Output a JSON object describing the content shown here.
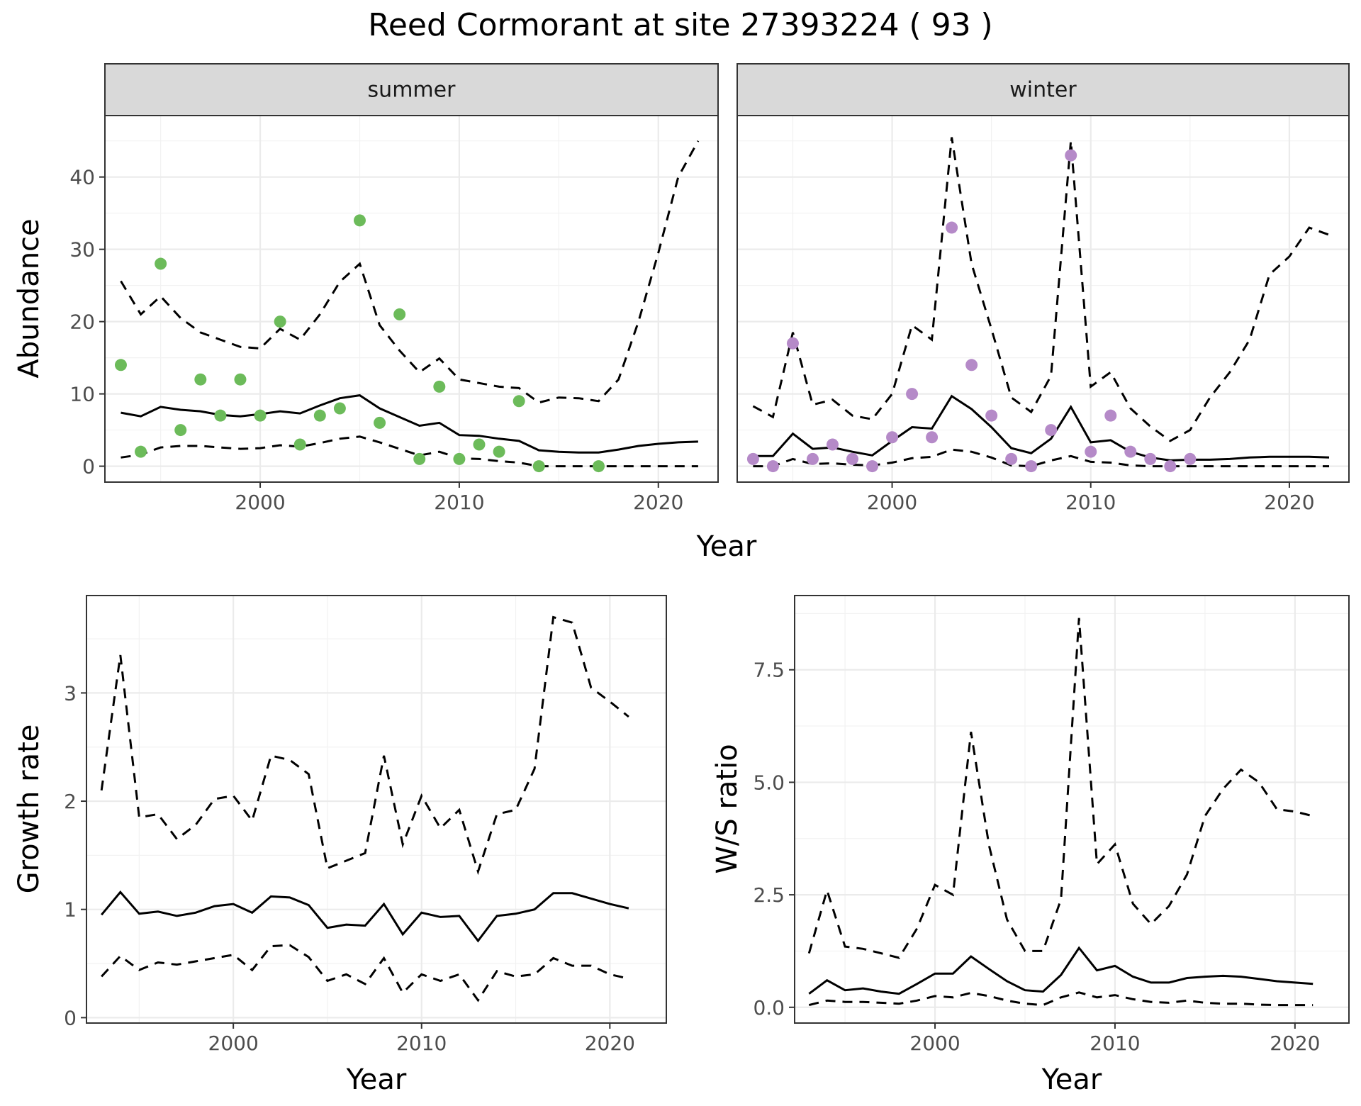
{
  "title": "Reed Cormorant at site 27393224 ( 93 )",
  "colors": {
    "summer_points": "#6cbb5a",
    "winter_points": "#b58ac8",
    "lines": "#000000",
    "strip": "#d9d9d9"
  },
  "chart_data": [
    {
      "type": "line",
      "facet": "summer",
      "xlabel": "Year",
      "ylabel": "Abundance",
      "xlim": [
        1992.2,
        2023.0
      ],
      "ylim": [
        -2.2,
        48.5
      ],
      "x_ticks": [
        2000,
        2010,
        2020
      ],
      "y_ticks": [
        0,
        10,
        20,
        30,
        40
      ],
      "grid": true,
      "series": [
        {
          "style": "solid",
          "x": [
            1993,
            1994,
            1995,
            1996,
            1997,
            1998,
            1999,
            2000,
            2001,
            2002,
            2003,
            2004,
            2005,
            2006,
            2007,
            2008,
            2009,
            2010,
            2011,
            2012,
            2013,
            2014,
            2015,
            2016,
            2017,
            2018,
            2019,
            2020,
            2021,
            2022
          ],
          "values": [
            7.4,
            6.9,
            8.2,
            7.8,
            7.6,
            7.1,
            6.9,
            7.2,
            7.6,
            7.3,
            8.4,
            9.4,
            9.8,
            8.0,
            6.8,
            5.6,
            6.0,
            4.3,
            4.2,
            3.8,
            3.5,
            2.2,
            2.0,
            1.9,
            1.9,
            2.3,
            2.8,
            3.1,
            3.3,
            3.4
          ]
        },
        {
          "style": "dashed",
          "x": [
            1993,
            1994,
            1995,
            1996,
            1997,
            1998,
            1999,
            2000,
            2001,
            2002,
            2003,
            2004,
            2005,
            2006,
            2007,
            2008,
            2009,
            2010,
            2011,
            2012,
            2013,
            2014,
            2015,
            2016,
            2017,
            2018,
            2019,
            2020,
            2021,
            2022
          ],
          "values": [
            25.6,
            21.0,
            23.5,
            20.5,
            18.5,
            17.5,
            16.5,
            16.3,
            19.0,
            17.5,
            21.0,
            25.5,
            28.0,
            19.5,
            16.0,
            13.0,
            14.9,
            12.0,
            11.5,
            11.0,
            10.8,
            8.8,
            9.5,
            9.4,
            9.0,
            12.0,
            20.0,
            29.5,
            40.0,
            45.0
          ]
        },
        {
          "style": "dashed",
          "x": [
            1993,
            1994,
            1995,
            1996,
            1997,
            1998,
            1999,
            2000,
            2001,
            2002,
            2003,
            2004,
            2005,
            2006,
            2007,
            2008,
            2009,
            2010,
            2011,
            2012,
            2013,
            2014,
            2015,
            2016,
            2017,
            2018,
            2019,
            2020,
            2021,
            2022
          ],
          "values": [
            1.2,
            1.6,
            2.6,
            2.8,
            2.8,
            2.6,
            2.4,
            2.5,
            2.9,
            2.7,
            3.2,
            3.8,
            4.1,
            3.3,
            2.4,
            1.5,
            2.0,
            1.1,
            1.0,
            0.7,
            0.5,
            0.0,
            0.0,
            0.0,
            0.0,
            0.0,
            0.0,
            0.0,
            0.0,
            0.0
          ]
        }
      ],
      "points": {
        "x": [
          1993,
          1994,
          1995,
          1996,
          1997,
          1998,
          1999,
          2000,
          2001,
          2002,
          2003,
          2004,
          2005,
          2006,
          2007,
          2008,
          2009,
          2010,
          2011,
          2012,
          2013,
          2014,
          2017
        ],
        "values": [
          14,
          2,
          28,
          5,
          12,
          7,
          12,
          7,
          20,
          3,
          7,
          8,
          34,
          6,
          21,
          1,
          11,
          1,
          3,
          2,
          9,
          0,
          0
        ]
      }
    },
    {
      "type": "line",
      "facet": "winter",
      "xlabel": "Year",
      "ylabel": "Abundance",
      "xlim": [
        1992.2,
        2023.0
      ],
      "ylim": [
        -2.2,
        48.5
      ],
      "x_ticks": [
        2000,
        2010,
        2020
      ],
      "y_ticks": [
        0,
        10,
        20,
        30,
        40
      ],
      "grid": true,
      "series": [
        {
          "style": "solid",
          "x": [
            1993,
            1994,
            1995,
            1996,
            1997,
            1998,
            1999,
            2000,
            2001,
            2002,
            2003,
            2004,
            2005,
            2006,
            2007,
            2008,
            2009,
            2010,
            2011,
            2012,
            2013,
            2014,
            2015,
            2016,
            2017,
            2018,
            2019,
            2020,
            2021,
            2022
          ],
          "values": [
            1.4,
            1.4,
            4.5,
            2.4,
            2.6,
            2.0,
            1.5,
            3.5,
            5.4,
            5.2,
            9.7,
            7.9,
            5.4,
            2.5,
            1.8,
            3.8,
            8.2,
            3.3,
            3.6,
            2.0,
            1.2,
            0.8,
            0.9,
            0.9,
            1.0,
            1.2,
            1.3,
            1.3,
            1.3,
            1.2
          ]
        },
        {
          "style": "dashed",
          "x": [
            1993,
            1994,
            1995,
            1996,
            1997,
            1998,
            1999,
            2000,
            2001,
            2002,
            2003,
            2004,
            2005,
            2006,
            2007,
            2008,
            2009,
            2010,
            2011,
            2012,
            2013,
            2014,
            2015,
            2016,
            2017,
            2018,
            2019,
            2020,
            2021,
            2022
          ],
          "values": [
            8.3,
            6.8,
            18.5,
            8.5,
            9.2,
            7.0,
            6.5,
            10.0,
            19.5,
            17.5,
            45.5,
            28.0,
            19.0,
            9.5,
            7.5,
            12.5,
            45.0,
            11.0,
            13.0,
            8.0,
            5.5,
            3.5,
            5.0,
            9.5,
            13.0,
            17.5,
            26.5,
            29.0,
            33.0,
            32.0
          ]
        },
        {
          "style": "dashed",
          "x": [
            1993,
            1994,
            1995,
            1996,
            1997,
            1998,
            1999,
            2000,
            2001,
            2002,
            2003,
            2004,
            2005,
            2006,
            2007,
            2008,
            2009,
            2010,
            2011,
            2012,
            2013,
            2014,
            2015,
            2016,
            2017,
            2018,
            2019,
            2020,
            2021,
            2022
          ],
          "values": [
            0.0,
            0.0,
            1.0,
            0.3,
            0.4,
            0.2,
            0.1,
            0.5,
            1.1,
            1.3,
            2.3,
            2.0,
            1.2,
            0.1,
            0.0,
            0.8,
            1.4,
            0.6,
            0.5,
            0.1,
            0.0,
            0.0,
            0.0,
            0.0,
            0.0,
            0.0,
            0.0,
            0.0,
            0.0,
            0.0
          ]
        }
      ],
      "points": {
        "x": [
          1993,
          1994,
          1995,
          1996,
          1997,
          1998,
          1999,
          2000,
          2001,
          2002,
          2003,
          2004,
          2005,
          2006,
          2007,
          2008,
          2009,
          2010,
          2011,
          2012,
          2013,
          2014,
          2015
        ],
        "values": [
          1,
          0,
          17,
          1,
          3,
          1,
          0,
          4,
          10,
          4,
          33,
          14,
          7,
          1,
          0,
          5,
          43,
          2,
          7,
          2,
          1,
          0,
          1
        ]
      }
    },
    {
      "type": "line",
      "xlabel": "Year",
      "ylabel": "Growth rate",
      "xlim": [
        1992.2,
        2023.0
      ],
      "ylim": [
        -0.05,
        3.9
      ],
      "x_ticks": [
        2000,
        2010,
        2020
      ],
      "y_ticks": [
        0,
        1,
        2,
        3
      ],
      "grid": true,
      "series": [
        {
          "style": "solid",
          "x": [
            1993,
            1994,
            1995,
            1996,
            1997,
            1998,
            1999,
            2000,
            2001,
            2002,
            2003,
            2004,
            2005,
            2006,
            2007,
            2008,
            2009,
            2010,
            2011,
            2012,
            2013,
            2014,
            2015,
            2016,
            2017,
            2018,
            2019,
            2020,
            2021
          ],
          "values": [
            0.95,
            1.16,
            0.96,
            0.98,
            0.94,
            0.97,
            1.03,
            1.05,
            0.97,
            1.12,
            1.11,
            1.04,
            0.83,
            0.86,
            0.85,
            1.05,
            0.77,
            0.97,
            0.93,
            0.94,
            0.71,
            0.94,
            0.96,
            1.0,
            1.15,
            1.15,
            1.1,
            1.05,
            1.01
          ]
        },
        {
          "style": "dashed",
          "x": [
            1993,
            1994,
            1995,
            1996,
            1997,
            1998,
            1999,
            2000,
            2001,
            2002,
            2003,
            2004,
            2005,
            2006,
            2007,
            2008,
            2009,
            2010,
            2011,
            2012,
            2013,
            2014,
            2015,
            2016,
            2017,
            2018,
            2019,
            2020,
            2021
          ],
          "values": [
            2.1,
            3.35,
            1.85,
            1.88,
            1.65,
            1.78,
            2.02,
            2.05,
            1.82,
            2.42,
            2.38,
            2.25,
            1.38,
            1.45,
            1.52,
            2.42,
            1.6,
            2.05,
            1.75,
            1.92,
            1.35,
            1.88,
            1.92,
            2.3,
            3.7,
            3.65,
            3.05,
            2.92,
            2.78
          ]
        },
        {
          "style": "dashed",
          "x": [
            1993,
            1994,
            1995,
            1996,
            1997,
            1998,
            1999,
            2000,
            2001,
            2002,
            2003,
            2004,
            2005,
            2006,
            2007,
            2008,
            2009,
            2010,
            2011,
            2012,
            2013,
            2014,
            2015,
            2016,
            2017,
            2018,
            2019,
            2020,
            2021
          ],
          "values": [
            0.38,
            0.57,
            0.44,
            0.51,
            0.49,
            0.52,
            0.55,
            0.58,
            0.44,
            0.66,
            0.67,
            0.56,
            0.34,
            0.4,
            0.31,
            0.55,
            0.23,
            0.4,
            0.34,
            0.4,
            0.16,
            0.43,
            0.38,
            0.4,
            0.55,
            0.48,
            0.48,
            0.4,
            0.36
          ]
        }
      ]
    },
    {
      "type": "line",
      "xlabel": "Year",
      "ylabel": "W/S ratio",
      "xlim": [
        1992.2,
        2023.0
      ],
      "ylim": [
        -0.35,
        9.15
      ],
      "x_ticks": [
        2000,
        2010,
        2020
      ],
      "y_ticks": [
        0.0,
        2.5,
        5.0,
        7.5
      ],
      "y_tick_labels": [
        "0.0",
        "2.5",
        "5.0",
        "7.5"
      ],
      "grid": true,
      "series": [
        {
          "style": "solid",
          "x": [
            1993,
            1994,
            1995,
            1996,
            1997,
            1998,
            1999,
            2000,
            2001,
            2002,
            2003,
            2004,
            2005,
            2006,
            2007,
            2008,
            2009,
            2010,
            2011,
            2012,
            2013,
            2014,
            2015,
            2016,
            2017,
            2018,
            2019,
            2020,
            2021
          ],
          "values": [
            0.3,
            0.6,
            0.38,
            0.42,
            0.35,
            0.3,
            0.52,
            0.75,
            0.75,
            1.13,
            0.85,
            0.58,
            0.38,
            0.35,
            0.72,
            1.32,
            0.82,
            0.92,
            0.68,
            0.55,
            0.55,
            0.65,
            0.68,
            0.7,
            0.68,
            0.63,
            0.58,
            0.55,
            0.52
          ]
        },
        {
          "style": "dashed",
          "x": [
            1993,
            1994,
            1995,
            1996,
            1997,
            1998,
            1999,
            2000,
            2001,
            2002,
            2003,
            2004,
            2005,
            2006,
            2007,
            2008,
            2009,
            2010,
            2011,
            2012,
            2013,
            2014,
            2015,
            2016,
            2017,
            2018,
            2019,
            2020,
            2021
          ],
          "values": [
            1.2,
            2.6,
            1.35,
            1.3,
            1.2,
            1.1,
            1.75,
            2.72,
            2.5,
            6.12,
            3.6,
            1.95,
            1.25,
            1.25,
            2.4,
            8.65,
            3.18,
            3.62,
            2.3,
            1.85,
            2.25,
            2.95,
            4.25,
            4.85,
            5.28,
            5.0,
            4.4,
            4.35,
            4.25
          ]
        },
        {
          "style": "dashed",
          "x": [
            1993,
            1994,
            1995,
            1996,
            1997,
            1998,
            1999,
            2000,
            2001,
            2002,
            2003,
            2004,
            2005,
            2006,
            2007,
            2008,
            2009,
            2010,
            2011,
            2012,
            2013,
            2014,
            2015,
            2016,
            2017,
            2018,
            2019,
            2020,
            2021
          ],
          "values": [
            0.05,
            0.15,
            0.12,
            0.12,
            0.1,
            0.08,
            0.15,
            0.25,
            0.22,
            0.32,
            0.25,
            0.15,
            0.08,
            0.05,
            0.22,
            0.33,
            0.22,
            0.27,
            0.18,
            0.12,
            0.1,
            0.15,
            0.1,
            0.08,
            0.08,
            0.06,
            0.05,
            0.05,
            0.05
          ]
        }
      ]
    }
  ]
}
